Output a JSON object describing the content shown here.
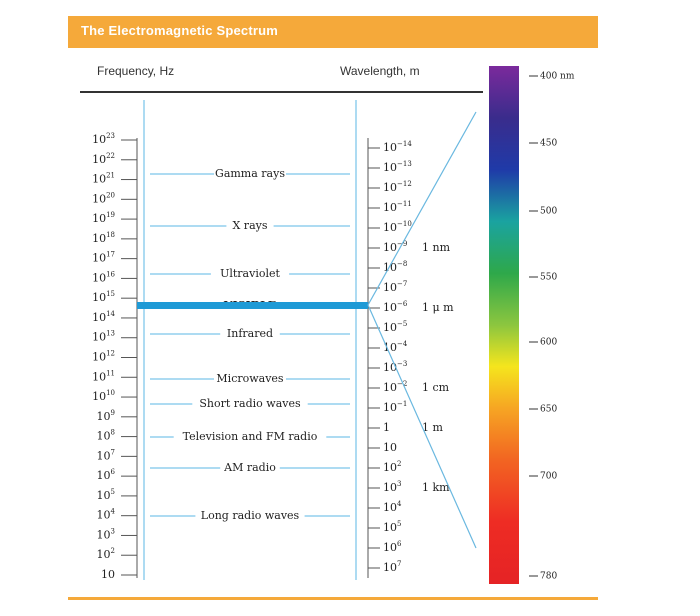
{
  "title": "The Electromagnetic Spectrum",
  "columns": {
    "frequency": "Frequency, Hz",
    "wavelength": "Wavelength, m"
  },
  "frequency_ticks": [
    {
      "base": "10",
      "exp": "23"
    },
    {
      "base": "10",
      "exp": "22"
    },
    {
      "base": "10",
      "exp": "21"
    },
    {
      "base": "10",
      "exp": "20"
    },
    {
      "base": "10",
      "exp": "19"
    },
    {
      "base": "10",
      "exp": "18"
    },
    {
      "base": "10",
      "exp": "17"
    },
    {
      "base": "10",
      "exp": "16"
    },
    {
      "base": "10",
      "exp": "15"
    },
    {
      "base": "10",
      "exp": "14"
    },
    {
      "base": "10",
      "exp": "13"
    },
    {
      "base": "10",
      "exp": "12"
    },
    {
      "base": "10",
      "exp": "11"
    },
    {
      "base": "10",
      "exp": "10"
    },
    {
      "base": "10",
      "exp": "9"
    },
    {
      "base": "10",
      "exp": "8"
    },
    {
      "base": "10",
      "exp": "7"
    },
    {
      "base": "10",
      "exp": "6"
    },
    {
      "base": "10",
      "exp": "5"
    },
    {
      "base": "10",
      "exp": "4"
    },
    {
      "base": "10",
      "exp": "3"
    },
    {
      "base": "10",
      "exp": "2"
    },
    {
      "base": "10",
      "exp": ""
    }
  ],
  "wavelength_ticks": [
    {
      "base": "10",
      "exp": "−14"
    },
    {
      "base": "10",
      "exp": "−13"
    },
    {
      "base": "10",
      "exp": "−12"
    },
    {
      "base": "10",
      "exp": "−11"
    },
    {
      "base": "10",
      "exp": "−10"
    },
    {
      "base": "10",
      "exp": "−9"
    },
    {
      "base": "10",
      "exp": "−8"
    },
    {
      "base": "10",
      "exp": "−7"
    },
    {
      "base": "10",
      "exp": "−6"
    },
    {
      "base": "10",
      "exp": "−5"
    },
    {
      "base": "10",
      "exp": "−4"
    },
    {
      "base": "10",
      "exp": "−3"
    },
    {
      "base": "10",
      "exp": "−2"
    },
    {
      "base": "10",
      "exp": "−1"
    },
    {
      "base": "1",
      "exp": ""
    },
    {
      "base": "10",
      "exp": ""
    },
    {
      "base": "10",
      "exp": "2"
    },
    {
      "base": "10",
      "exp": "3"
    },
    {
      "base": "10",
      "exp": "4"
    },
    {
      "base": "10",
      "exp": "5"
    },
    {
      "base": "10",
      "exp": "6"
    },
    {
      "base": "10",
      "exp": "7"
    }
  ],
  "wavelength_annotations": [
    "1 nm",
    "1 μ m",
    "1 cm",
    "1 m",
    "1 km"
  ],
  "bands": [
    "Gamma rays",
    "X rays",
    "Ultraviolet",
    "VISIBLE",
    "Infrared",
    "Microwaves",
    "Short radio waves",
    "Television and FM radio",
    "AM radio",
    "Long radio waves"
  ],
  "visible_spectrum_labels": [
    "400 nm",
    "450",
    "500",
    "550",
    "600",
    "650",
    "700",
    "780"
  ],
  "colors": {
    "header": "#f5a93a",
    "visible_band": "#1e9ad6",
    "zoom_lines": "#6ab8e0"
  }
}
